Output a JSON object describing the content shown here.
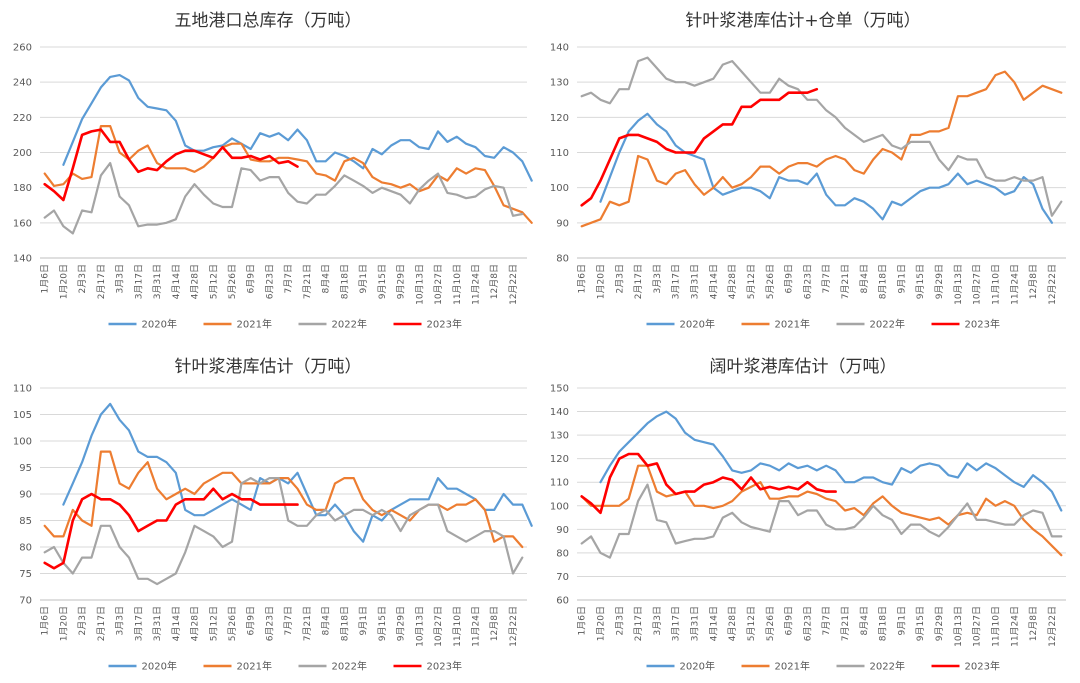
{
  "colors": {
    "2020": "#5b9bd5",
    "2021": "#ed7d31",
    "2022": "#a5a5a5",
    "2023": "#ff0000"
  },
  "x_ticks": [
    "1月6日",
    "1月20日",
    "2月3日",
    "2月17日",
    "3月3日",
    "3月17日",
    "3月31日",
    "4月14日",
    "4月28日",
    "5月12日",
    "5月26日",
    "6月9日",
    "6月23日",
    "7月7日",
    "7月21日",
    "8月4日",
    "8月18日",
    "9月1日",
    "9月15日",
    "9月29日",
    "10月13日",
    "10月27日",
    "11月10日",
    "11月24日",
    "12月8日",
    "12月22日"
  ],
  "chart_data": [
    {
      "type": "line",
      "title": "五地港口总库存（万吨）",
      "ylim": [
        140,
        260
      ],
      "y_ticks": [
        140,
        160,
        180,
        200,
        220,
        240,
        260
      ],
      "x_period": "weekly",
      "series": [
        {
          "name": "2020年",
          "start": 2,
          "values": [
            193,
            206,
            219,
            228,
            237,
            243,
            244,
            241,
            231,
            226,
            225,
            224,
            218,
            204,
            201,
            201,
            203,
            204,
            208,
            205,
            202,
            211,
            209,
            211,
            207,
            213,
            207,
            195,
            195,
            200,
            198,
            195,
            191,
            202,
            199,
            204,
            207,
            207,
            203,
            202,
            212,
            206,
            209,
            205,
            203,
            198,
            197,
            203,
            200,
            195,
            184
          ]
        },
        {
          "name": "2021年",
          "start": 0,
          "values": [
            188,
            181,
            182,
            188,
            185,
            186,
            215,
            215,
            200,
            196,
            201,
            204,
            194,
            191,
            191,
            191,
            189,
            192,
            197,
            203,
            205,
            205,
            196,
            195,
            195,
            197,
            197,
            196,
            195,
            188,
            187,
            184,
            195,
            197,
            194,
            186,
            183,
            182,
            180,
            182,
            178,
            180,
            187,
            184,
            191,
            188,
            191,
            190,
            181,
            170,
            168,
            166,
            160
          ]
        },
        {
          "name": "2022年",
          "start": 0,
          "values": [
            163,
            167,
            158,
            154,
            167,
            166,
            187,
            194,
            175,
            170,
            158,
            159,
            159,
            160,
            162,
            175,
            182,
            176,
            171,
            169,
            169,
            191,
            190,
            184,
            186,
            186,
            177,
            172,
            171,
            176,
            176,
            181,
            187,
            184,
            181,
            177,
            180,
            178,
            176,
            171,
            179,
            184,
            188,
            177,
            176,
            174,
            175,
            179,
            181,
            180,
            164,
            165
          ]
        },
        {
          "name": "2023年",
          "start": 0,
          "values": [
            182,
            178,
            173,
            191,
            210,
            212,
            213,
            206,
            206,
            196,
            189,
            191,
            190,
            195,
            199,
            201,
            201,
            199,
            197,
            203,
            197,
            197,
            198,
            196,
            198,
            194,
            195,
            192
          ]
        }
      ],
      "legend_position": "bottom"
    },
    {
      "type": "line",
      "title": "针叶浆港库估计+仓单（万吨）",
      "ylim": [
        80,
        140
      ],
      "y_ticks": [
        80,
        90,
        100,
        110,
        120,
        130,
        140
      ],
      "x_period": "weekly",
      "series": [
        {
          "name": "2020年",
          "start": 2,
          "values": [
            96,
            103,
            110,
            116,
            119,
            121,
            118,
            116,
            112,
            110,
            109,
            108,
            100,
            98,
            99,
            100,
            100,
            99,
            97,
            103,
            102,
            102,
            101,
            104,
            98,
            95,
            95,
            97,
            96,
            94,
            91,
            96,
            95,
            97,
            99,
            100,
            100,
            101,
            104,
            101,
            102,
            101,
            100,
            98,
            99,
            103,
            101,
            94,
            90
          ]
        },
        {
          "name": "2021年",
          "start": 0,
          "values": [
            89,
            90,
            91,
            96,
            95,
            96,
            109,
            108,
            102,
            101,
            104,
            105,
            101,
            98,
            100,
            103,
            100,
            101,
            103,
            106,
            106,
            104,
            106,
            107,
            107,
            106,
            108,
            109,
            108,
            105,
            104,
            108,
            111,
            110,
            108,
            115,
            115,
            116,
            116,
            117,
            126,
            126,
            127,
            128,
            132,
            133,
            130,
            125,
            127,
            129,
            128,
            127
          ]
        },
        {
          "name": "2022年",
          "start": 0,
          "values": [
            126,
            127,
            125,
            124,
            128,
            128,
            136,
            137,
            134,
            131,
            130,
            130,
            129,
            130,
            131,
            135,
            136,
            133,
            130,
            127,
            127,
            131,
            129,
            128,
            125,
            125,
            122,
            120,
            117,
            115,
            113,
            114,
            115,
            112,
            111,
            113,
            113,
            113,
            108,
            105,
            109,
            108,
            108,
            103,
            102,
            102,
            103,
            102,
            102,
            103,
            92,
            96
          ]
        },
        {
          "name": "2023年",
          "start": 0,
          "values": [
            95,
            97,
            102,
            108,
            114,
            115,
            115,
            114,
            113,
            111,
            110,
            110,
            110,
            114,
            116,
            118,
            118,
            123,
            123,
            125,
            125,
            125,
            127,
            127,
            127,
            128
          ]
        }
      ],
      "legend_position": "bottom"
    },
    {
      "type": "line",
      "title": "针叶浆港库估计（万吨）",
      "ylim": [
        70,
        110
      ],
      "y_ticks": [
        70,
        75,
        80,
        85,
        90,
        95,
        100,
        105,
        110
      ],
      "x_period": "weekly",
      "series": [
        {
          "name": "2020年",
          "start": 2,
          "values": [
            88,
            92,
            96,
            101,
            105,
            107,
            104,
            102,
            98,
            97,
            97,
            96,
            94,
            87,
            86,
            86,
            87,
            88,
            89,
            88,
            87,
            93,
            92,
            93,
            92,
            94,
            90,
            86,
            86,
            88,
            86,
            83,
            81,
            86,
            85,
            87,
            88,
            89,
            89,
            89,
            93,
            91,
            91,
            90,
            89,
            87,
            87,
            90,
            88,
            88,
            84
          ]
        },
        {
          "name": "2021年",
          "start": 0,
          "values": [
            84,
            82,
            82,
            87,
            85,
            84,
            98,
            98,
            92,
            91,
            94,
            96,
            91,
            89,
            90,
            91,
            90,
            92,
            93,
            94,
            94,
            92,
            92,
            92,
            92,
            93,
            93,
            91,
            88,
            87,
            87,
            92,
            93,
            93,
            89,
            87,
            86,
            87,
            86,
            85,
            87,
            88,
            88,
            87,
            88,
            88,
            89,
            87,
            81,
            82,
            82,
            80
          ]
        },
        {
          "name": "2022年",
          "start": 0,
          "values": [
            79,
            80,
            77,
            75,
            78,
            78,
            84,
            84,
            80,
            78,
            74,
            74,
            73,
            74,
            75,
            79,
            84,
            83,
            82,
            80,
            81,
            92,
            93,
            92,
            93,
            93,
            85,
            84,
            84,
            86,
            87,
            85,
            86,
            87,
            87,
            86,
            87,
            86,
            83,
            86,
            87,
            88,
            88,
            83,
            82,
            81,
            82,
            83,
            83,
            82,
            75,
            78
          ]
        },
        {
          "name": "2023年",
          "start": 0,
          "values": [
            77,
            76,
            77,
            85,
            89,
            90,
            89,
            89,
            88,
            86,
            83,
            84,
            85,
            85,
            88,
            89,
            89,
            89,
            91,
            89,
            90,
            89,
            89,
            88,
            88,
            88,
            88,
            88
          ]
        }
      ],
      "legend_position": "bottom"
    },
    {
      "type": "line",
      "title": "阔叶浆港库估计（万吨）",
      "ylim": [
        60,
        150
      ],
      "y_ticks": [
        60,
        70,
        80,
        90,
        100,
        110,
        120,
        130,
        140,
        150
      ],
      "x_period": "weekly",
      "series": [
        {
          "name": "2020年",
          "start": 2,
          "values": [
            110,
            117,
            123,
            127,
            131,
            135,
            138,
            140,
            137,
            131,
            128,
            127,
            126,
            121,
            115,
            114,
            115,
            118,
            117,
            115,
            118,
            116,
            117,
            115,
            117,
            115,
            110,
            110,
            112,
            112,
            110,
            109,
            116,
            114,
            117,
            118,
            117,
            113,
            112,
            118,
            115,
            118,
            116,
            113,
            110,
            108,
            113,
            110,
            106,
            98
          ]
        },
        {
          "name": "2021年",
          "start": 0,
          "values": [
            104,
            100,
            100,
            100,
            100,
            103,
            117,
            117,
            106,
            104,
            105,
            106,
            100,
            100,
            99,
            100,
            102,
            106,
            108,
            110,
            103,
            103,
            104,
            104,
            106,
            105,
            103,
            102,
            98,
            99,
            96,
            101,
            104,
            100,
            97,
            96,
            95,
            94,
            95,
            92,
            96,
            97,
            96,
            103,
            100,
            102,
            100,
            94,
            90,
            87,
            83,
            79
          ]
        },
        {
          "name": "2022年",
          "start": 0,
          "values": [
            84,
            87,
            80,
            78,
            88,
            88,
            102,
            109,
            94,
            93,
            84,
            85,
            86,
            86,
            87,
            95,
            97,
            93,
            91,
            90,
            89,
            102,
            102,
            96,
            98,
            98,
            92,
            90,
            90,
            91,
            95,
            100,
            96,
            94,
            88,
            92,
            92,
            89,
            87,
            91,
            96,
            101,
            94,
            94,
            93,
            92,
            92,
            96,
            98,
            97,
            87,
            87
          ]
        },
        {
          "name": "2023年",
          "start": 0,
          "values": [
            104,
            101,
            97,
            112,
            120,
            122,
            122,
            117,
            118,
            109,
            105,
            106,
            106,
            109,
            110,
            112,
            111,
            107,
            112,
            107,
            108,
            107,
            108,
            107,
            110,
            107,
            106,
            106
          ]
        }
      ],
      "legend_position": "bottom"
    }
  ]
}
